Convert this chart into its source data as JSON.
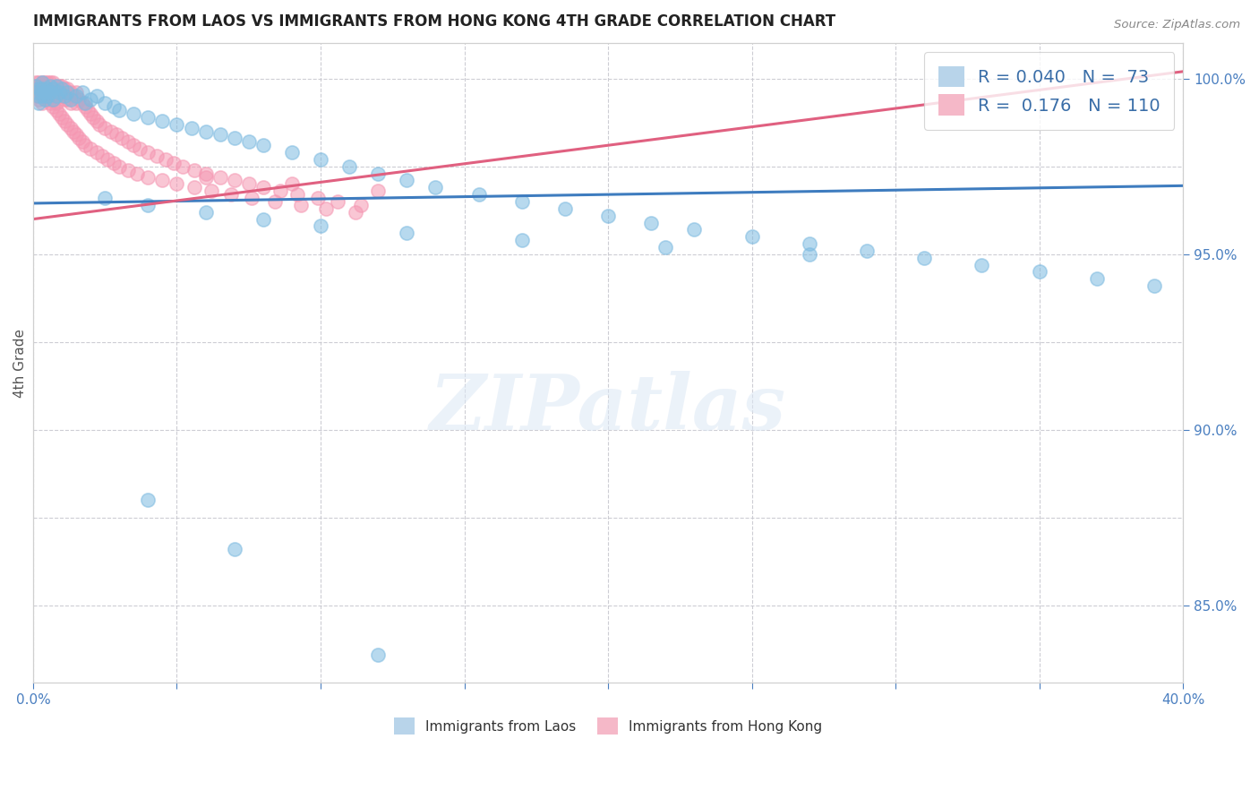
{
  "title": "IMMIGRANTS FROM LAOS VS IMMIGRANTS FROM HONG KONG 4TH GRADE CORRELATION CHART",
  "source_text": "Source: ZipAtlas.com",
  "ylabel": "4th Grade",
  "xlim": [
    0.0,
    0.4
  ],
  "ylim": [
    0.828,
    1.01
  ],
  "legend_blue_R": "0.040",
  "legend_blue_N": "73",
  "legend_pink_R": "0.176",
  "legend_pink_N": "110",
  "blue_color": "#7dbae0",
  "pink_color": "#f597b2",
  "blue_line_color": "#3e7cbf",
  "pink_line_color": "#e06080",
  "blue_line_x0": 0.0,
  "blue_line_x1": 0.4,
  "blue_line_y0": 0.9645,
  "blue_line_y1": 0.9695,
  "pink_line_x0": 0.0,
  "pink_line_x1": 0.4,
  "pink_line_y0": 0.96,
  "pink_line_y1": 1.002,
  "blue_scatter_x": [
    0.001,
    0.001,
    0.002,
    0.002,
    0.002,
    0.003,
    0.003,
    0.003,
    0.004,
    0.004,
    0.005,
    0.005,
    0.006,
    0.006,
    0.007,
    0.007,
    0.008,
    0.008,
    0.009,
    0.01,
    0.011,
    0.012,
    0.013,
    0.015,
    0.017,
    0.018,
    0.02,
    0.022,
    0.025,
    0.028,
    0.03,
    0.035,
    0.04,
    0.045,
    0.05,
    0.055,
    0.06,
    0.065,
    0.07,
    0.075,
    0.08,
    0.09,
    0.1,
    0.11,
    0.12,
    0.13,
    0.14,
    0.155,
    0.17,
    0.185,
    0.2,
    0.215,
    0.23,
    0.25,
    0.27,
    0.29,
    0.31,
    0.33,
    0.35,
    0.37,
    0.39,
    0.025,
    0.04,
    0.06,
    0.08,
    0.1,
    0.13,
    0.17,
    0.22,
    0.27,
    0.04,
    0.07,
    0.12
  ],
  "blue_scatter_y": [
    0.998,
    0.996,
    0.997,
    0.995,
    0.993,
    0.999,
    0.997,
    0.995,
    0.996,
    0.994,
    0.997,
    0.995,
    0.998,
    0.996,
    0.997,
    0.994,
    0.998,
    0.995,
    0.996,
    0.997,
    0.995,
    0.996,
    0.994,
    0.995,
    0.996,
    0.993,
    0.994,
    0.995,
    0.993,
    0.992,
    0.991,
    0.99,
    0.989,
    0.988,
    0.987,
    0.986,
    0.985,
    0.984,
    0.983,
    0.982,
    0.981,
    0.979,
    0.977,
    0.975,
    0.973,
    0.971,
    0.969,
    0.967,
    0.965,
    0.963,
    0.961,
    0.959,
    0.957,
    0.955,
    0.953,
    0.951,
    0.949,
    0.947,
    0.945,
    0.943,
    0.941,
    0.966,
    0.964,
    0.962,
    0.96,
    0.958,
    0.956,
    0.954,
    0.952,
    0.95,
    0.88,
    0.866,
    0.836
  ],
  "pink_scatter_x": [
    0.001,
    0.001,
    0.001,
    0.002,
    0.002,
    0.002,
    0.002,
    0.003,
    0.003,
    0.003,
    0.003,
    0.004,
    0.004,
    0.004,
    0.005,
    0.005,
    0.005,
    0.006,
    0.006,
    0.006,
    0.007,
    0.007,
    0.007,
    0.008,
    0.008,
    0.008,
    0.009,
    0.009,
    0.01,
    0.01,
    0.011,
    0.011,
    0.012,
    0.012,
    0.013,
    0.013,
    0.014,
    0.015,
    0.015,
    0.016,
    0.017,
    0.018,
    0.019,
    0.02,
    0.021,
    0.022,
    0.023,
    0.025,
    0.027,
    0.029,
    0.031,
    0.033,
    0.035,
    0.037,
    0.04,
    0.043,
    0.046,
    0.049,
    0.052,
    0.056,
    0.06,
    0.065,
    0.07,
    0.075,
    0.08,
    0.086,
    0.092,
    0.099,
    0.106,
    0.114,
    0.001,
    0.002,
    0.003,
    0.004,
    0.005,
    0.006,
    0.007,
    0.008,
    0.009,
    0.01,
    0.011,
    0.012,
    0.013,
    0.014,
    0.015,
    0.016,
    0.017,
    0.018,
    0.02,
    0.022,
    0.024,
    0.026,
    0.028,
    0.03,
    0.033,
    0.036,
    0.04,
    0.045,
    0.05,
    0.056,
    0.062,
    0.069,
    0.076,
    0.084,
    0.093,
    0.102,
    0.112,
    0.06,
    0.09,
    0.12
  ],
  "pink_scatter_y": [
    0.999,
    0.997,
    0.995,
    0.999,
    0.998,
    0.996,
    0.994,
    0.999,
    0.998,
    0.996,
    0.993,
    0.999,
    0.997,
    0.995,
    0.999,
    0.997,
    0.995,
    0.999,
    0.997,
    0.994,
    0.999,
    0.996,
    0.994,
    0.998,
    0.996,
    0.993,
    0.998,
    0.995,
    0.998,
    0.995,
    0.997,
    0.994,
    0.997,
    0.994,
    0.996,
    0.993,
    0.995,
    0.996,
    0.993,
    0.994,
    0.993,
    0.992,
    0.991,
    0.99,
    0.989,
    0.988,
    0.987,
    0.986,
    0.985,
    0.984,
    0.983,
    0.982,
    0.981,
    0.98,
    0.979,
    0.978,
    0.977,
    0.976,
    0.975,
    0.974,
    0.973,
    0.972,
    0.971,
    0.97,
    0.969,
    0.968,
    0.967,
    0.966,
    0.965,
    0.964,
    0.998,
    0.997,
    0.996,
    0.995,
    0.994,
    0.993,
    0.992,
    0.991,
    0.99,
    0.989,
    0.988,
    0.987,
    0.986,
    0.985,
    0.984,
    0.983,
    0.982,
    0.981,
    0.98,
    0.979,
    0.978,
    0.977,
    0.976,
    0.975,
    0.974,
    0.973,
    0.972,
    0.971,
    0.97,
    0.969,
    0.968,
    0.967,
    0.966,
    0.965,
    0.964,
    0.963,
    0.962,
    0.972,
    0.97,
    0.968
  ],
  "watermark_text": "ZIPatlas",
  "background_color": "#ffffff",
  "grid_color": "#c8c8d0"
}
